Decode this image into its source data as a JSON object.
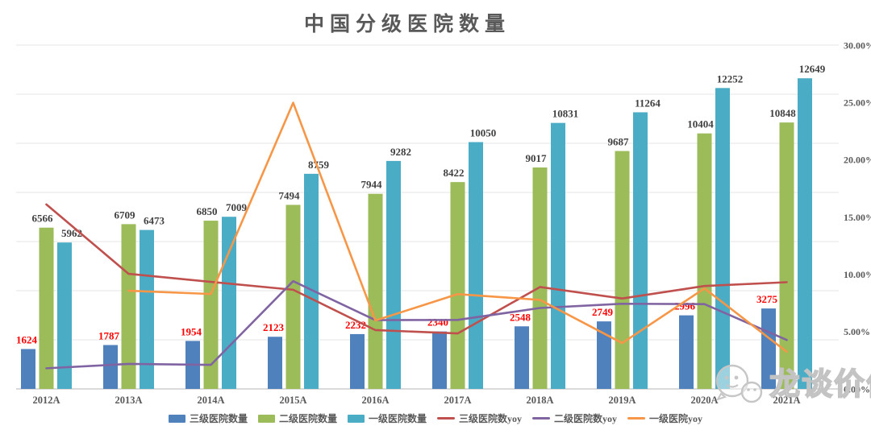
{
  "title": "中国分级医院数量",
  "watermark": {
    "text": "龙谈价值"
  },
  "colors": {
    "bar_blue": "#4F81BD",
    "bar_green": "#9CBB59",
    "bar_teal": "#4BACC6",
    "line_red": "#C0504D",
    "line_purple": "#8064A2",
    "line_orange": "#F79646",
    "label_dark": "#3F3F3F",
    "label_red": "#FF0000",
    "axis_text": "#595959",
    "gridline": "#E4E4E4",
    "axis_line": "#C3C3C3"
  },
  "chart_data": {
    "type": "combo-bar-line",
    "title": "中国分级医院数量",
    "categories": [
      "2012A",
      "2013A",
      "2014A",
      "2015A",
      "2016A",
      "2017A",
      "2018A",
      "2019A",
      "2020A",
      "2021A"
    ],
    "bar_series": [
      {
        "name": "三级医院数量",
        "color": "#4F81BD",
        "label_color": "#FF0000",
        "values": [
          1624,
          1787,
          1954,
          2123,
          2232,
          2340,
          2548,
          2749,
          2996,
          3275
        ]
      },
      {
        "name": "二级医院数量",
        "color": "#9CBB59",
        "label_color": "#3F3F3F",
        "values": [
          6566,
          6709,
          6850,
          7494,
          7944,
          8422,
          9017,
          9687,
          10404,
          10848
        ]
      },
      {
        "name": "一级医院数量",
        "color": "#4BACC6",
        "label_color": "#3F3F3F",
        "values": [
          5962,
          6473,
          7009,
          8759,
          9282,
          10050,
          10831,
          11264,
          12252,
          12649
        ]
      }
    ],
    "line_series": [
      {
        "name": "三级医院数yoy",
        "color": "#C0504D",
        "values_pct": [
          16.1,
          10.04,
          9.34,
          8.65,
          5.13,
          4.84,
          8.89,
          7.89,
          8.98,
          9.31
        ]
      },
      {
        "name": "二级医院数yoy",
        "color": "#8064A2",
        "values_pct": [
          1.8,
          2.18,
          2.1,
          9.4,
          6.0,
          6.02,
          7.06,
          7.43,
          7.4,
          4.27
        ]
      },
      {
        "name": "一级医院yoy",
        "color": "#F79646",
        "values_pct": [
          null,
          8.57,
          8.28,
          24.97,
          5.97,
          8.27,
          7.77,
          4.0,
          8.77,
          3.24
        ]
      }
    ],
    "left_axis": {
      "min": 0,
      "max": 14000,
      "major": 2000,
      "labels_shown": false
    },
    "right_axis": {
      "min": 0,
      "max": 30,
      "major": 5,
      "labels": [
        "30.00%",
        "25.00%",
        "20.00%",
        "15.00%",
        "10.00%",
        "5.00%",
        "0.00%"
      ]
    },
    "grid": true,
    "legend_position": "bottom"
  }
}
